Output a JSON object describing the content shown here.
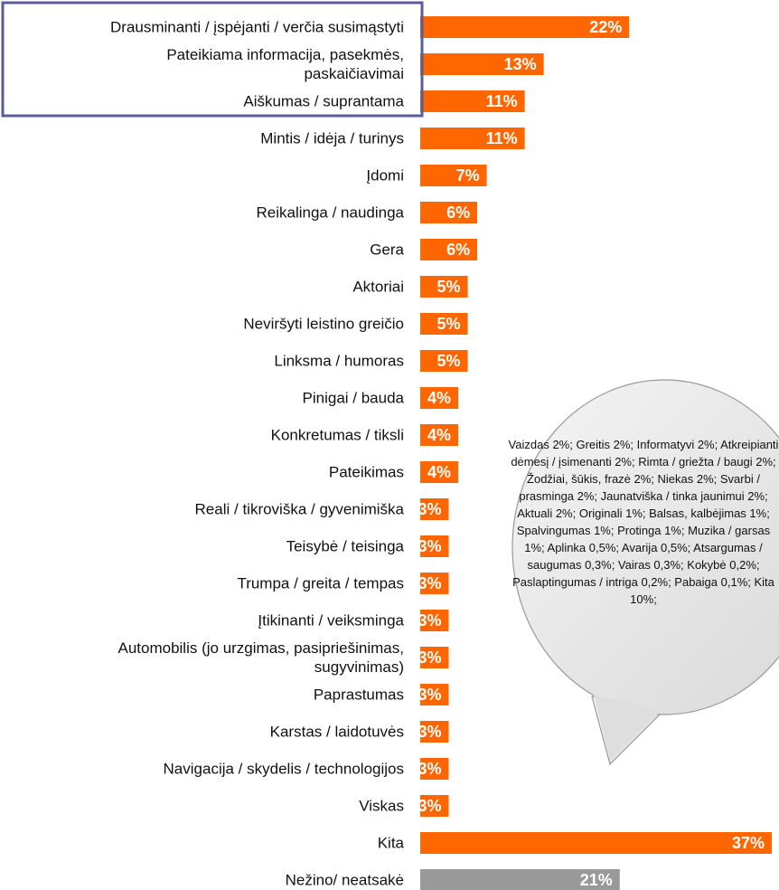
{
  "chart_data": {
    "type": "hbar",
    "categories": [
      "Drausminanti / įspėjanti / verčia susimąstyti",
      "Pateikiama informacija, pasekmės,\npaskaičiavimai",
      "Aiškumas / suprantama",
      "Mintis / idėja / turinys",
      "Įdomi",
      "Reikalinga / naudinga",
      "Gera",
      "Aktoriai",
      "Neviršyti leistino greičio",
      "Linksma / humoras",
      "Pinigai / bauda",
      "Konkretumas / tiksli",
      "Pateikimas",
      "Reali / tikroviška / gyvenimiška",
      "Teisybė / teisinga",
      "Trumpa / greita / tempas",
      "Įtikinanti / veiksminga",
      "Automobilis (jo urzgimas, pasipriešinimas,\nsugyvinimas)",
      "Paprastumas",
      "Karstas / laidotuvės",
      "Navigacija / skydelis / technologijos",
      "Viskas",
      "Kita",
      "Nežino/ neatsakė"
    ],
    "values": [
      22,
      13,
      11,
      11,
      7,
      6,
      6,
      5,
      5,
      5,
      4,
      4,
      4,
      3,
      3,
      3,
      3,
      3,
      3,
      3,
      3,
      3,
      37,
      21
    ],
    "value_labels": [
      "22%",
      "13%",
      "11%",
      "11%",
      "7%",
      "6%",
      "6%",
      "5%",
      "5%",
      "5%",
      "4%",
      "4%",
      "4%",
      "3%",
      "3%",
      "3%",
      "3%",
      "3%",
      "3%",
      "3%",
      "3%",
      "3%",
      "37%",
      "21%"
    ],
    "colors": [
      "#ff6600",
      "#ff6600",
      "#ff6600",
      "#ff6600",
      "#ff6600",
      "#ff6600",
      "#ff6600",
      "#ff6600",
      "#ff6600",
      "#ff6600",
      "#ff6600",
      "#ff6600",
      "#ff6600",
      "#ff6600",
      "#ff6600",
      "#ff6600",
      "#ff6600",
      "#ff6600",
      "#ff6600",
      "#ff6600",
      "#ff6600",
      "#ff6600",
      "#ff6600",
      "#999999"
    ],
    "annotation": "Vaizdas 2%; Greitis 2%; Informatyvi 2%; Atkreipianti dėmesį / įsimenanti 2%; Rimta / griežta / baugi 2%; Žodžiai, šūkis, frazė 2%; Niekas 2%; Svarbi / prasminga 2%; Jaunatviška / tinka jaunimui 2%; Aktuali 2%; Originali 1%; Balsas, kalbėjimas 1%; Spalvingumas 1%; Protinga 1%; Muzika / garsas 1%; Aplinka 0,5%; Avarija 0,5%; Atsargumas / saugumas 0,3%; Vairas 0,3%; Kokybė 0,2%; Paslaptingumas / intriga 0,2%; Pabaiga 0,1%; Kita 10%;"
  }
}
